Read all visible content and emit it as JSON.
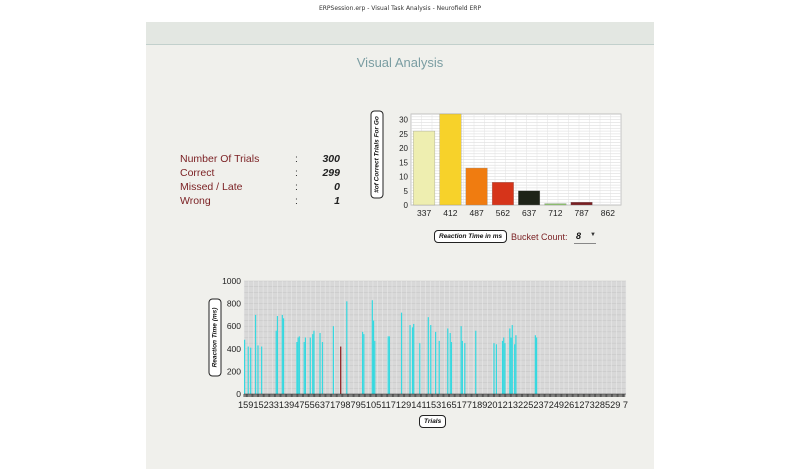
{
  "window": {
    "title": "ERPSession.erp - Visual Task Analysis - Neurofield ERP"
  },
  "page": {
    "heading": "Visual Analysis"
  },
  "stats": [
    {
      "label": "Number Of Trials",
      "value": "300"
    },
    {
      "label": "Correct",
      "value": "299"
    },
    {
      "label": "Missed / Late",
      "value": "0"
    },
    {
      "label": "Wrong",
      "value": "1"
    }
  ],
  "histogram": {
    "ylabel": "#of Correct Trials For Go",
    "xlabel": "Reaction Time in ms",
    "bucket_label": "Bucket Count:",
    "bucket_value": "8"
  },
  "trials_chart": {
    "ylabel": "Reaction Time (ms)",
    "xlabel": "Trials",
    "x_tick_label": "159152331394755637179879510511712914115316517718920121322523724926127328529 7"
  },
  "colors": {
    "accent": "#7a9da2",
    "label_red": "#7a1f22",
    "trial_bar": "#35d9e0",
    "trial_bar_wrong": "#8b1a1a"
  },
  "chart_data": [
    {
      "type": "bar",
      "categories": [
        "337",
        "412",
        "487",
        "562",
        "637",
        "712",
        "787",
        "862"
      ],
      "values": [
        26,
        32,
        13,
        8,
        5,
        0.5,
        1,
        0
      ],
      "colors": [
        "#eeeeb0",
        "#f7d22a",
        "#f07c10",
        "#d6341a",
        "#1e2418",
        "#8cc66a",
        "#7a1f22",
        "#cccccc"
      ],
      "ylabel": "#of Correct Trials For Go",
      "xlabel": "Reaction Time in ms",
      "ylim": [
        0,
        32
      ],
      "yticks": [
        0,
        5,
        10,
        15,
        20,
        25,
        30
      ],
      "grid": true
    },
    {
      "type": "bar",
      "ylabel": "Reaction Time (ms)",
      "xlabel": "Trials",
      "ylim": [
        0,
        1000
      ],
      "yticks": [
        0,
        200,
        400,
        600,
        800,
        1000
      ],
      "grid": true,
      "wrong_trial_index": 79,
      "values": [
        480,
        0,
        0,
        420,
        0,
        410,
        0,
        0,
        0,
        700,
        0,
        430,
        0,
        0,
        420,
        0,
        0,
        0,
        0,
        0,
        0,
        0,
        0,
        0,
        0,
        0,
        560,
        690,
        0,
        0,
        0,
        700,
        670,
        0,
        0,
        0,
        0,
        0,
        0,
        0,
        0,
        0,
        0,
        460,
        500,
        510,
        0,
        0,
        0,
        460,
        500,
        0,
        0,
        0,
        500,
        0,
        530,
        560,
        0,
        0,
        0,
        0,
        540,
        0,
        460,
        0,
        0,
        0,
        0,
        0,
        0,
        0,
        0,
        600,
        0,
        0,
        0,
        0,
        0,
        420,
        0,
        0,
        0,
        0,
        820,
        0,
        0,
        0,
        0,
        0,
        0,
        0,
        0,
        0,
        0,
        0,
        0,
        550,
        530,
        0,
        0,
        0,
        0,
        0,
        0,
        830,
        650,
        470,
        0,
        0,
        0,
        0,
        0,
        0,
        0,
        0,
        0,
        0,
        510,
        510,
        0,
        0,
        0,
        0,
        0,
        0,
        0,
        0,
        0,
        720,
        0,
        0,
        0,
        0,
        0,
        0,
        610,
        0,
        590,
        620,
        0,
        0,
        0,
        0,
        450,
        0,
        0,
        0,
        0,
        0,
        0,
        680,
        0,
        610,
        0,
        0,
        0,
        550,
        0,
        0,
        470,
        0,
        0,
        0,
        0,
        0,
        0,
        580,
        0,
        540,
        460,
        0,
        0,
        0,
        0,
        0,
        0,
        0,
        600,
        470,
        0,
        450,
        0,
        0,
        0,
        0,
        0,
        0,
        0,
        0,
        560,
        0,
        0,
        0,
        0,
        0,
        0,
        0,
        0,
        0,
        0,
        0,
        0,
        0,
        0,
        450,
        0,
        440,
        0,
        0,
        0,
        0,
        470,
        500,
        450,
        0,
        0,
        0,
        580,
        500,
        610,
        0,
        440,
        520,
        0,
        0,
        0,
        0,
        0,
        0,
        0,
        0,
        0,
        0,
        0,
        0,
        0,
        0,
        0,
        520,
        500,
        0,
        0,
        0,
        0,
        0,
        0,
        0,
        0,
        0,
        0,
        0,
        0,
        0,
        0,
        0,
        0,
        0,
        0,
        0,
        0,
        0,
        0,
        0,
        0,
        0,
        0,
        0,
        0,
        0,
        0,
        0,
        0,
        0,
        0,
        0,
        0,
        0,
        0,
        0,
        0,
        0,
        0,
        0,
        0,
        0,
        0,
        0,
        0,
        0,
        0,
        0,
        0,
        0,
        0,
        0,
        0,
        0,
        0,
        0,
        0,
        0,
        0,
        0,
        0,
        0,
        0,
        0,
        0,
        0,
        0,
        0,
        0,
        0
      ]
    }
  ]
}
